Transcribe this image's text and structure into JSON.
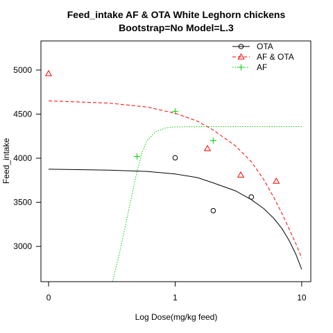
{
  "chart_data": {
    "type": "scatter",
    "title": "Feed_intake AF & OTA   White Leghorn chickens",
    "subtitle": "Bootstrap=No Model=L.3",
    "xlabel": "Log Dose(mg/kg feed)",
    "ylabel": "Feed_intake",
    "x_scale": "log",
    "x_ticks": [
      {
        "label": "0",
        "value": 0.1
      },
      {
        "label": "1",
        "value": 1
      },
      {
        "label": "10",
        "value": 10
      }
    ],
    "y_ticks": [
      3000,
      3500,
      4000,
      4500,
      5000
    ],
    "xlim": [
      0.087,
      11.8
    ],
    "ylim": [
      2600,
      5330
    ],
    "legend_position": "top-right",
    "colors": {
      "OTA": "#000000",
      "AF & OTA": "#ff0000",
      "AF": "#00cd00"
    },
    "series": [
      {
        "name": "OTA",
        "marker": "circle",
        "line": "solid",
        "points": [
          {
            "x": 1,
            "y": 4005
          },
          {
            "x": 2,
            "y": 3405
          },
          {
            "x": 4,
            "y": 3560
          }
        ],
        "curve": [
          {
            "x": 0.1,
            "y": 3875
          },
          {
            "x": 0.3,
            "y": 3865
          },
          {
            "x": 0.6,
            "y": 3850
          },
          {
            "x": 1,
            "y": 3822
          },
          {
            "x": 1.5,
            "y": 3780
          },
          {
            "x": 2,
            "y": 3720
          },
          {
            "x": 3,
            "y": 3630
          },
          {
            "x": 4,
            "y": 3530
          },
          {
            "x": 5,
            "y": 3430
          },
          {
            "x": 6,
            "y": 3320
          },
          {
            "x": 7,
            "y": 3200
          },
          {
            "x": 8,
            "y": 3060
          },
          {
            "x": 9,
            "y": 2910
          },
          {
            "x": 10,
            "y": 2740
          }
        ]
      },
      {
        "name": "AF & OTA",
        "marker": "triangle",
        "line": "dashed",
        "points": [
          {
            "x": 0.1,
            "y": 4960
          },
          {
            "x": 1.8,
            "y": 4110
          },
          {
            "x": 3.3,
            "y": 3810
          },
          {
            "x": 6.3,
            "y": 3740
          }
        ],
        "curve": [
          {
            "x": 0.1,
            "y": 4650
          },
          {
            "x": 0.3,
            "y": 4625
          },
          {
            "x": 0.6,
            "y": 4580
          },
          {
            "x": 1,
            "y": 4510
          },
          {
            "x": 1.5,
            "y": 4420
          },
          {
            "x": 2,
            "y": 4320
          },
          {
            "x": 3,
            "y": 4140
          },
          {
            "x": 4,
            "y": 3960
          },
          {
            "x": 5,
            "y": 3760
          },
          {
            "x": 6,
            "y": 3560
          },
          {
            "x": 7,
            "y": 3370
          },
          {
            "x": 8,
            "y": 3190
          },
          {
            "x": 9,
            "y": 3030
          },
          {
            "x": 10,
            "y": 2870
          }
        ]
      },
      {
        "name": "AF",
        "marker": "plus",
        "line": "dotted",
        "points": [
          {
            "x": 0.5,
            "y": 4020
          },
          {
            "x": 1,
            "y": 4530
          },
          {
            "x": 2,
            "y": 4200
          }
        ],
        "curve": [
          {
            "x": 0.32,
            "y": 2600
          },
          {
            "x": 0.36,
            "y": 2900
          },
          {
            "x": 0.4,
            "y": 3200
          },
          {
            "x": 0.45,
            "y": 3550
          },
          {
            "x": 0.5,
            "y": 3850
          },
          {
            "x": 0.55,
            "y": 4070
          },
          {
            "x": 0.6,
            "y": 4200
          },
          {
            "x": 0.7,
            "y": 4300
          },
          {
            "x": 0.85,
            "y": 4345
          },
          {
            "x": 1,
            "y": 4355
          },
          {
            "x": 2,
            "y": 4358
          },
          {
            "x": 10,
            "y": 4358
          }
        ]
      }
    ]
  }
}
